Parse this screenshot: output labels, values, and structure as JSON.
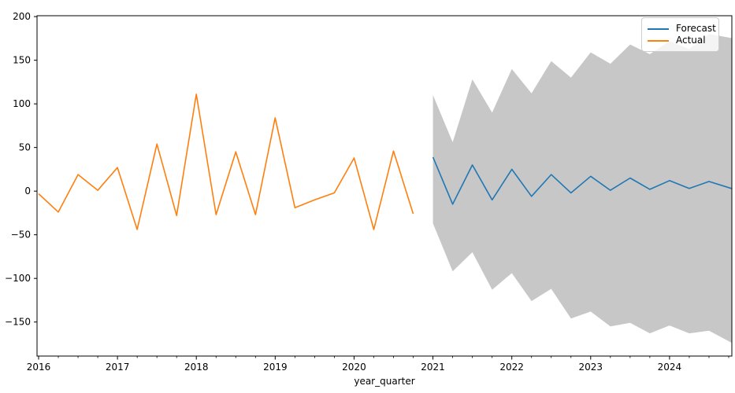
{
  "figure": {
    "title": "",
    "xlabel": "year_quarter"
  },
  "legend": {
    "position": "top-right",
    "items": [
      {
        "label": "Forecast",
        "color": "#1f77b4"
      },
      {
        "label": "Actual",
        "color": "#ff7f0e"
      }
    ]
  },
  "colors": {
    "forecast_line": "#1f77b4",
    "actual_line": "#ff7f0e",
    "confidence_band": "#c7c7c7",
    "axes": "#000000",
    "legend_border": "#cccccc"
  },
  "chart_data": {
    "type": "line",
    "title": "",
    "xlabel": "year_quarter",
    "ylabel": "",
    "grid": false,
    "legend_position": "upper right",
    "xlim": [
      2015.98,
      2024.79
    ],
    "ylim": [
      -189,
      201
    ],
    "x_ticks": [
      {
        "value": 2016,
        "label": "2016"
      },
      {
        "value": 2017,
        "label": "2017"
      },
      {
        "value": 2018,
        "label": "2018"
      },
      {
        "value": 2019,
        "label": "2019"
      },
      {
        "value": 2020,
        "label": "2020"
      },
      {
        "value": 2021,
        "label": "2021"
      },
      {
        "value": 2022,
        "label": "2022"
      },
      {
        "value": 2023,
        "label": "2023"
      },
      {
        "value": 2024,
        "label": "2024"
      }
    ],
    "x_minor_tick_step": 0.25,
    "y_ticks": [
      {
        "value": 200,
        "label": "200"
      },
      {
        "value": 150,
        "label": "150"
      },
      {
        "value": 100,
        "label": "100"
      },
      {
        "value": 50,
        "label": "50"
      },
      {
        "value": 0,
        "label": "0"
      },
      {
        "value": -50,
        "label": "−50"
      },
      {
        "value": -100,
        "label": "−100"
      },
      {
        "value": -150,
        "label": "−150"
      }
    ],
    "series": [
      {
        "name": "Forecast",
        "color": "#1f77b4",
        "extend_to_edge": true,
        "x": [
          2021.0,
          2021.25,
          2021.5,
          2021.75,
          2022.0,
          2022.25,
          2022.5,
          2022.75,
          2023.0,
          2023.25,
          2023.5,
          2023.75,
          2024.0,
          2024.25,
          2024.5,
          2024.75
        ],
        "values": [
          39,
          -15,
          30,
          -10,
          25,
          -6,
          19,
          -2,
          17,
          1,
          15,
          2,
          12,
          3,
          11,
          4
        ]
      },
      {
        "name": "Actual",
        "color": "#ff7f0e",
        "extend_to_edge": false,
        "x": [
          2016.0,
          2016.25,
          2016.5,
          2016.75,
          2017.0,
          2017.25,
          2017.5,
          2017.75,
          2018.0,
          2018.25,
          2018.5,
          2018.75,
          2019.0,
          2019.25,
          2019.5,
          2019.75,
          2020.0,
          2020.25,
          2020.5,
          2020.75
        ],
        "values": [
          -3,
          -24,
          19,
          1,
          27,
          -44,
          54,
          -28,
          111,
          -27,
          45,
          -27,
          84,
          -19,
          -10,
          -2,
          38,
          -44,
          46,
          -26
        ]
      }
    ],
    "confidence_band": {
      "name": "Forecast confidence interval",
      "color": "#c7c7c7",
      "extend_to_edge": true,
      "x": [
        2021.0,
        2021.25,
        2021.5,
        2021.75,
        2022.0,
        2022.25,
        2022.5,
        2022.75,
        2023.0,
        2023.25,
        2023.5,
        2023.75,
        2024.0,
        2024.25,
        2024.5,
        2024.75
      ],
      "upper": [
        110,
        56,
        128,
        90,
        140,
        112,
        149,
        130,
        159,
        146,
        168,
        157,
        172,
        163,
        180,
        176
      ],
      "lower": [
        -37,
        -92,
        -70,
        -113,
        -94,
        -126,
        -112,
        -146,
        -138,
        -155,
        -151,
        -163,
        -154,
        -163,
        -160,
        -172
      ]
    }
  }
}
